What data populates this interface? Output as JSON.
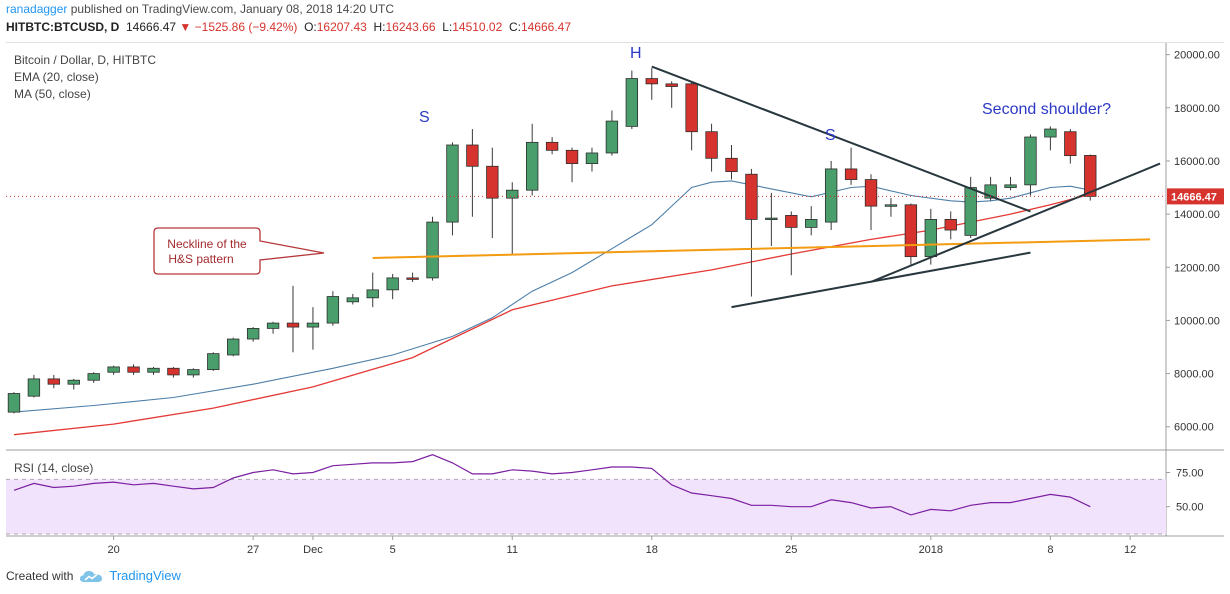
{
  "header": {
    "author": "ranadagger",
    "published_text": "published on TradingView.com, January 08, 2018 14:20 UTC"
  },
  "quote": {
    "symbol": "HITBTC:BTCUSD, D",
    "last": "14666.47",
    "change": "−1525.86 (−9.42%)",
    "open_label": "O:",
    "open": "16207.43",
    "high_label": "H:",
    "high": "16243.66",
    "low_label": "L:",
    "low": "14510.02",
    "close_label": "C:",
    "close": "14666.47"
  },
  "legend": {
    "title": "Bitcoin / Dollar, D, HITBTC",
    "ema": "EMA (20, close)",
    "ma": "MA (50, close)",
    "rsi": "RSI (14, close)"
  },
  "annotations": {
    "h": "H",
    "s_left": "S",
    "s_right": "S",
    "second_shoulder": "Second shoulder?",
    "neckline_line1": "Neckline of the",
    "neckline_line2": "H&S pattern"
  },
  "footer": {
    "created_with": "Created with",
    "brand": "TradingView"
  },
  "colors": {
    "up": "#4a9e6c",
    "down": "#d6332e",
    "ema": "#4e7fa8",
    "ma": "#e53935",
    "neckline": "#f39c12",
    "trendline": "#27373d",
    "rsi_line": "#7b1fa2",
    "rsi_band": "#f1e3fb",
    "annotation_text": "#2b39c4",
    "callout_border": "#b5373a",
    "callout_text": "#a32b2e",
    "price_tag": "#d6332e"
  },
  "chart_data": {
    "type": "candlestick",
    "y_axis": {
      "ylim": [
        5200,
        20400
      ],
      "ticks": [
        6000,
        8000,
        10000,
        12000,
        14000,
        16000,
        18000,
        20000
      ],
      "tick_labels": [
        "6000.00",
        "8000.00",
        "10000.00",
        "12000.00",
        "14000.00",
        "16000.00",
        "18000.00",
        "20000.00"
      ]
    },
    "x_axis": {
      "ticks": [
        {
          "day": 5,
          "label": "20"
        },
        {
          "day": 12,
          "label": "27"
        },
        {
          "day": 15,
          "label": "Dec"
        },
        {
          "day": 19,
          "label": "5"
        },
        {
          "day": 25,
          "label": "11"
        },
        {
          "day": 32,
          "label": "18"
        },
        {
          "day": 39,
          "label": "25"
        },
        {
          "day": 46,
          "label": "2018"
        },
        {
          "day": 52,
          "label": "8"
        },
        {
          "day": 56,
          "label": "12"
        }
      ]
    },
    "day_range": [
      -0.4,
      57.8
    ],
    "last_price": 14666.47,
    "last_price_label": "14666.47",
    "candles": [
      {
        "o": 6550,
        "h": 7300,
        "l": 6500,
        "c": 7250
      },
      {
        "o": 7150,
        "h": 7950,
        "l": 7100,
        "c": 7800
      },
      {
        "o": 7800,
        "h": 7950,
        "l": 7450,
        "c": 7600
      },
      {
        "o": 7600,
        "h": 7800,
        "l": 7400,
        "c": 7750
      },
      {
        "o": 7750,
        "h": 8050,
        "l": 7650,
        "c": 8000
      },
      {
        "o": 8050,
        "h": 8300,
        "l": 7950,
        "c": 8250
      },
      {
        "o": 8250,
        "h": 8350,
        "l": 7950,
        "c": 8050
      },
      {
        "o": 8050,
        "h": 8250,
        "l": 7950,
        "c": 8200
      },
      {
        "o": 8200,
        "h": 8250,
        "l": 7850,
        "c": 7950
      },
      {
        "o": 7950,
        "h": 8200,
        "l": 7850,
        "c": 8150
      },
      {
        "o": 8150,
        "h": 8800,
        "l": 8100,
        "c": 8750
      },
      {
        "o": 8700,
        "h": 9350,
        "l": 8650,
        "c": 9300
      },
      {
        "o": 9300,
        "h": 9750,
        "l": 9200,
        "c": 9700
      },
      {
        "o": 9700,
        "h": 9950,
        "l": 9500,
        "c": 9900
      },
      {
        "o": 9900,
        "h": 11300,
        "l": 8800,
        "c": 9750
      },
      {
        "o": 9750,
        "h": 10500,
        "l": 8900,
        "c": 9900
      },
      {
        "o": 9900,
        "h": 11100,
        "l": 9800,
        "c": 10900
      },
      {
        "o": 10700,
        "h": 11000,
        "l": 10600,
        "c": 10850
      },
      {
        "o": 10850,
        "h": 11800,
        "l": 10500,
        "c": 11150
      },
      {
        "o": 11150,
        "h": 11750,
        "l": 10800,
        "c": 11600
      },
      {
        "o": 11600,
        "h": 11800,
        "l": 11450,
        "c": 11550
      },
      {
        "o": 11600,
        "h": 13900,
        "l": 11500,
        "c": 13700
      },
      {
        "o": 13700,
        "h": 16700,
        "l": 13200,
        "c": 16600
      },
      {
        "o": 16600,
        "h": 17200,
        "l": 13900,
        "c": 15800
      },
      {
        "o": 15800,
        "h": 16500,
        "l": 13100,
        "c": 14600
      },
      {
        "o": 14600,
        "h": 15200,
        "l": 12500,
        "c": 14900
      },
      {
        "o": 14900,
        "h": 17400,
        "l": 14700,
        "c": 16700
      },
      {
        "o": 16700,
        "h": 16900,
        "l": 16250,
        "c": 16400
      },
      {
        "o": 16400,
        "h": 16500,
        "l": 15200,
        "c": 15900
      },
      {
        "o": 15900,
        "h": 16500,
        "l": 15600,
        "c": 16300
      },
      {
        "o": 16300,
        "h": 17900,
        "l": 16200,
        "c": 17500
      },
      {
        "o": 17300,
        "h": 19400,
        "l": 17200,
        "c": 19100
      },
      {
        "o": 19100,
        "h": 19500,
        "l": 18300,
        "c": 18900
      },
      {
        "o": 18900,
        "h": 19000,
        "l": 18000,
        "c": 18800
      },
      {
        "o": 18900,
        "h": 18950,
        "l": 16400,
        "c": 17100
      },
      {
        "o": 17100,
        "h": 17400,
        "l": 15600,
        "c": 16100
      },
      {
        "o": 16100,
        "h": 16600,
        "l": 15300,
        "c": 15600
      },
      {
        "o": 15500,
        "h": 15700,
        "l": 10900,
        "c": 13800
      },
      {
        "o": 13800,
        "h": 14800,
        "l": 12800,
        "c": 13850
      },
      {
        "o": 13950,
        "h": 14100,
        "l": 11700,
        "c": 13500
      },
      {
        "o": 13500,
        "h": 14300,
        "l": 13200,
        "c": 13800
      },
      {
        "o": 13700,
        "h": 16000,
        "l": 13400,
        "c": 15700
      },
      {
        "o": 15700,
        "h": 16500,
        "l": 15100,
        "c": 15300
      },
      {
        "o": 15300,
        "h": 15500,
        "l": 13400,
        "c": 14300
      },
      {
        "o": 14300,
        "h": 14600,
        "l": 13900,
        "c": 14350
      },
      {
        "o": 14350,
        "h": 14400,
        "l": 12100,
        "c": 12400
      },
      {
        "o": 12400,
        "h": 14200,
        "l": 12100,
        "c": 13800
      },
      {
        "o": 13800,
        "h": 14100,
        "l": 13050,
        "c": 13400
      },
      {
        "o": 13200,
        "h": 15400,
        "l": 13100,
        "c": 15000
      },
      {
        "o": 14600,
        "h": 15400,
        "l": 14500,
        "c": 15100
      },
      {
        "o": 15000,
        "h": 15400,
        "l": 14900,
        "c": 15100
      },
      {
        "o": 15100,
        "h": 17000,
        "l": 14700,
        "c": 16900
      },
      {
        "o": 16900,
        "h": 17300,
        "l": 16400,
        "c": 17200
      },
      {
        "o": 17100,
        "h": 17200,
        "l": 15900,
        "c": 16200
      },
      {
        "o": 16207.43,
        "h": 16243.66,
        "l": 14510.02,
        "c": 14666.47
      }
    ],
    "ema20": [
      [
        0,
        6550
      ],
      [
        4,
        6800
      ],
      [
        8,
        7100
      ],
      [
        12,
        7600
      ],
      [
        16,
        8200
      ],
      [
        19,
        8700
      ],
      [
        22,
        9400
      ],
      [
        24,
        10100
      ],
      [
        26,
        11100
      ],
      [
        28,
        11800
      ],
      [
        30,
        12700
      ],
      [
        32,
        13600
      ],
      [
        33,
        14300
      ],
      [
        34,
        15000
      ],
      [
        35,
        15200
      ],
      [
        36,
        15250
      ],
      [
        38,
        14950
      ],
      [
        40,
        14650
      ],
      [
        42,
        15000
      ],
      [
        43,
        15050
      ],
      [
        45,
        14700
      ],
      [
        47,
        14500
      ],
      [
        48,
        14450
      ],
      [
        49,
        14500
      ],
      [
        50,
        14600
      ],
      [
        51,
        14800
      ],
      [
        52,
        15000
      ],
      [
        53,
        15050
      ],
      [
        54,
        14900
      ]
    ],
    "ma50": [
      [
        0,
        5700
      ],
      [
        5,
        6100
      ],
      [
        10,
        6700
      ],
      [
        15,
        7500
      ],
      [
        20,
        8600
      ],
      [
        25,
        10400
      ],
      [
        30,
        11300
      ],
      [
        35,
        11900
      ],
      [
        39,
        12500
      ],
      [
        43,
        13050
      ],
      [
        46,
        13400
      ],
      [
        48,
        13700
      ],
      [
        50,
        14000
      ],
      [
        52,
        14350
      ],
      [
        54,
        14750
      ]
    ],
    "neckline": [
      [
        18,
        12350
      ],
      [
        57,
        13050
      ]
    ],
    "trendlines": [
      [
        [
          32,
          19550
        ],
        [
          51,
          14100
        ]
      ],
      [
        [
          36,
          10500
        ],
        [
          51,
          12550
        ]
      ],
      [
        [
          43,
          11450
        ],
        [
          57.5,
          15900
        ]
      ]
    ],
    "rsi": {
      "ylim": [
        30,
        90
      ],
      "ticks": [
        50,
        75
      ],
      "tick_labels": [
        "50.00",
        "75.00"
      ],
      "band": [
        30,
        70
      ],
      "values": [
        [
          0,
          62
        ],
        [
          1,
          67
        ],
        [
          2,
          64
        ],
        [
          3,
          65
        ],
        [
          4,
          67
        ],
        [
          5,
          68
        ],
        [
          6,
          66
        ],
        [
          7,
          67
        ],
        [
          8,
          65
        ],
        [
          9,
          63
        ],
        [
          10,
          64
        ],
        [
          11,
          71
        ],
        [
          12,
          75
        ],
        [
          13,
          77
        ],
        [
          14,
          74
        ],
        [
          15,
          75
        ],
        [
          16,
          80
        ],
        [
          17,
          81
        ],
        [
          18,
          82
        ],
        [
          19,
          82
        ],
        [
          20,
          83
        ],
        [
          21,
          88
        ],
        [
          22,
          82
        ],
        [
          23,
          74
        ],
        [
          24,
          74
        ],
        [
          25,
          77
        ],
        [
          26,
          76
        ],
        [
          27,
          74
        ],
        [
          28,
          75
        ],
        [
          29,
          77
        ],
        [
          30,
          79
        ],
        [
          31,
          79
        ],
        [
          32,
          78
        ],
        [
          33,
          66
        ],
        [
          34,
          60
        ],
        [
          35,
          58
        ],
        [
          36,
          56
        ],
        [
          37,
          51
        ],
        [
          38,
          51
        ],
        [
          39,
          50
        ],
        [
          40,
          50
        ],
        [
          41,
          55
        ],
        [
          42,
          53
        ],
        [
          43,
          49
        ],
        [
          44,
          50
        ],
        [
          45,
          44
        ],
        [
          46,
          48
        ],
        [
          47,
          47
        ],
        [
          48,
          51
        ],
        [
          49,
          53
        ],
        [
          50,
          53
        ],
        [
          51,
          56
        ],
        [
          52,
          59
        ],
        [
          53,
          57
        ],
        [
          54,
          50
        ]
      ]
    }
  }
}
